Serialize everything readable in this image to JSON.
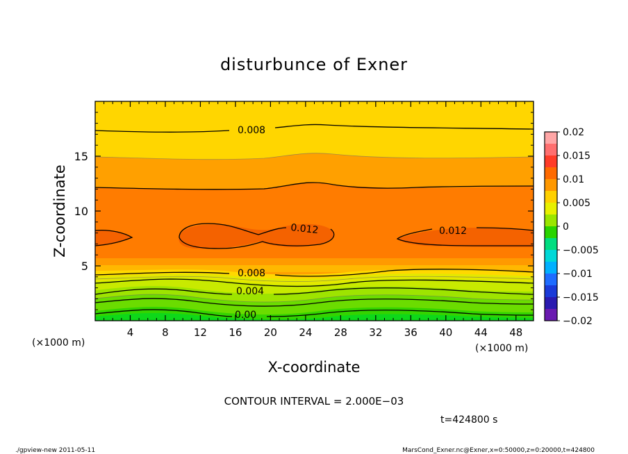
{
  "chart_data": {
    "type": "contour",
    "title": "disturbunce of Exner",
    "xlabel": "X-coordinate",
    "ylabel": "Z-coordinate",
    "x_unit": "(×1000 m)",
    "xlim": [
      0,
      50
    ],
    "ylim": [
      0,
      20
    ],
    "x_ticks": [
      4,
      8,
      12,
      16,
      20,
      24,
      28,
      32,
      36,
      40,
      44,
      48
    ],
    "y_ticks": [
      5,
      10,
      15
    ],
    "colorbar": {
      "min": -0.02,
      "max": 0.02,
      "tick_labels": [
        "0.02",
        "0.015",
        "0.01",
        "0.005",
        "0",
        "−0.005",
        "−0.01",
        "−0.015",
        "−0.02"
      ],
      "tick_values": [
        0.02,
        0.015,
        0.01,
        0.005,
        0,
        -0.005,
        -0.01,
        -0.015,
        -0.02
      ]
    },
    "contour_interval": "CONTOUR INTERVAL = 2.000E−03",
    "contour_labels": [
      "0.008",
      "0.012",
      "0.012",
      "0.008",
      "0.004",
      "0.00"
    ],
    "time_label": "t=424800 s",
    "z_profile": [
      {
        "z": 0.5,
        "value": 0.0005
      },
      {
        "z": 2,
        "value": 0.003
      },
      {
        "z": 3.5,
        "value": 0.0055
      },
      {
        "z": 5.5,
        "value": 0.0095
      },
      {
        "z": 7.5,
        "value": 0.0123
      },
      {
        "z": 10,
        "value": 0.011
      },
      {
        "z": 12.5,
        "value": 0.0098
      },
      {
        "z": 15,
        "value": 0.0088
      },
      {
        "z": 17.5,
        "value": 0.0079
      },
      {
        "z": 19.8,
        "value": 0.007
      }
    ]
  },
  "footer": {
    "left": "./gpview-new   2011-05-11",
    "right": "MarsCond_Exner.nc@Exner,x=0:50000,z=0:20000,t=424800"
  }
}
